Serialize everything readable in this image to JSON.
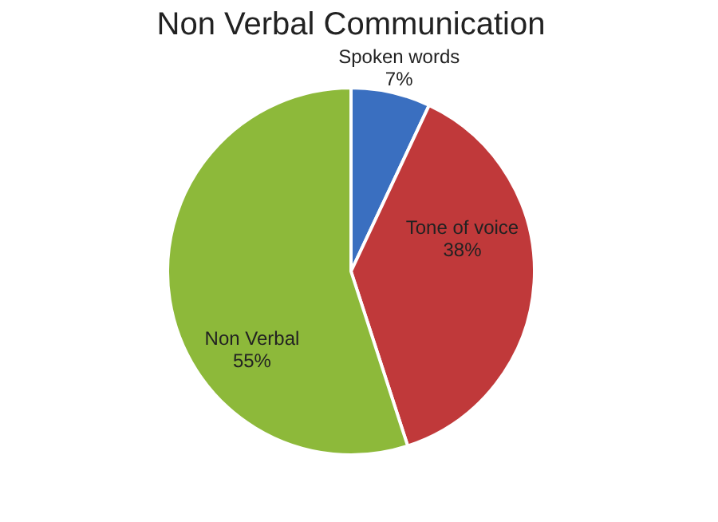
{
  "chart_data": {
    "type": "pie",
    "title": "Non Verbal Communication",
    "categories": [
      "Spoken words",
      "Tone of voice",
      "Non Verbal"
    ],
    "values": [
      7,
      38,
      55
    ],
    "colors": [
      "#3a6fc0",
      "#c0393a",
      "#8db93a"
    ],
    "value_labels": [
      "7%",
      "38%",
      "55%"
    ],
    "legend": false
  }
}
